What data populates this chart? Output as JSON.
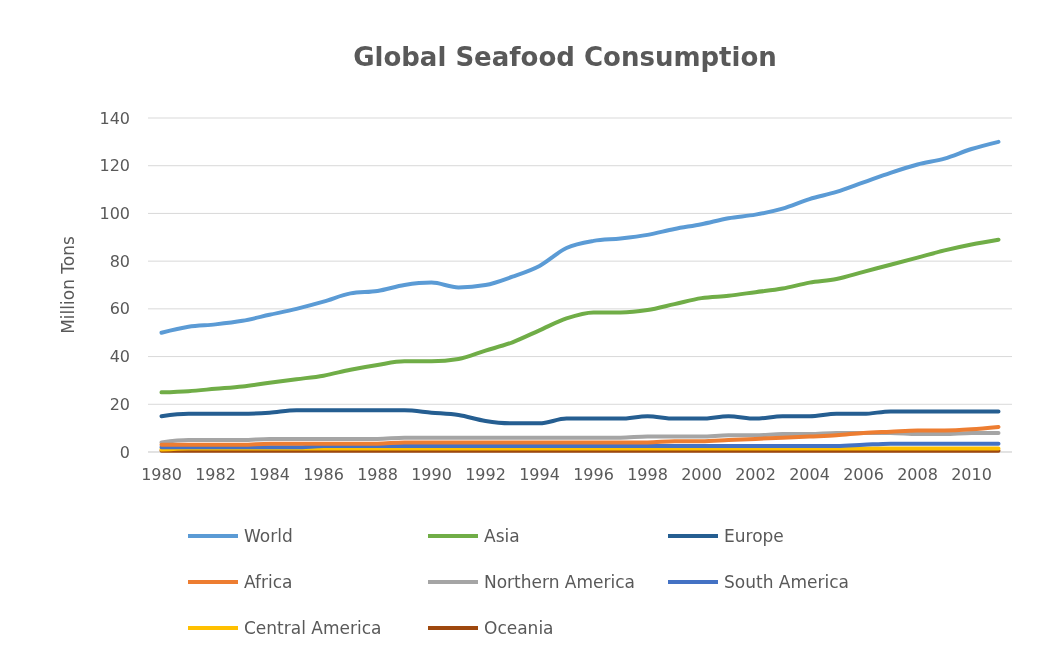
{
  "chart_data": {
    "type": "line",
    "title": "Global Seafood Consumption",
    "ylabel": "Million Tons",
    "x": [
      1980,
      1981,
      1982,
      1983,
      1984,
      1985,
      1986,
      1987,
      1988,
      1989,
      1990,
      1991,
      1992,
      1993,
      1994,
      1995,
      1996,
      1997,
      1998,
      1999,
      2000,
      2001,
      2002,
      2003,
      2004,
      2005,
      2006,
      2007,
      2008,
      2009,
      2010,
      2011
    ],
    "xlim": [
      1979.5,
      2011.5
    ],
    "xticks": [
      1980,
      1982,
      1984,
      1986,
      1988,
      1990,
      1992,
      1994,
      1996,
      1998,
      2000,
      2002,
      2004,
      2006,
      2008,
      2010
    ],
    "ylim": [
      0,
      140
    ],
    "yticks": [
      0,
      20,
      40,
      60,
      80,
      100,
      120,
      140
    ],
    "grid": "y",
    "legend": "bottom",
    "marker": "none",
    "line_style": "solid",
    "series": [
      {
        "name": "World",
        "color": "#5b9bd5",
        "values": [
          50,
          52.5,
          53.5,
          55,
          57.5,
          60,
          63,
          66.5,
          67.5,
          70,
          71,
          69,
          70,
          73.5,
          78,
          85.5,
          88.5,
          89.5,
          91,
          93.5,
          95.5,
          98,
          99.5,
          102,
          106,
          109,
          113,
          117,
          120.5,
          123,
          127,
          130
        ]
      },
      {
        "name": "Asia",
        "color": "#70ad47",
        "values": [
          25,
          25.5,
          26.5,
          27.5,
          29,
          30.5,
          32,
          34.5,
          36.5,
          38,
          38,
          39,
          42.5,
          46,
          51,
          56,
          58.5,
          58.5,
          59.5,
          62,
          64.5,
          65.5,
          67,
          68.5,
          71,
          72.5,
          75.5,
          78.5,
          81.5,
          84.5,
          87,
          89
        ]
      },
      {
        "name": "Europe",
        "color": "#255e91",
        "values": [
          15,
          16,
          16,
          16,
          16.5,
          17.5,
          17.5,
          17.5,
          17.5,
          17.5,
          16.5,
          15.5,
          13,
          12,
          12,
          14,
          14,
          14,
          15,
          14,
          14,
          15,
          14,
          15,
          15,
          16,
          16,
          17,
          17,
          17,
          17,
          17
        ]
      },
      {
        "name": "Africa",
        "color": "#ed7d31",
        "values": [
          3,
          3,
          3,
          3,
          3.5,
          3.5,
          3.5,
          3.5,
          3.5,
          4,
          4,
          4,
          4,
          4,
          4,
          4,
          4,
          4,
          4,
          4.5,
          4.5,
          5,
          5.5,
          6,
          6.5,
          7,
          8,
          8.5,
          9,
          9,
          9.5,
          10.5
        ]
      },
      {
        "name": "Northern America",
        "color": "#a5a5a5",
        "values": [
          4,
          5,
          5,
          5,
          5.5,
          5.5,
          5.5,
          5.5,
          5.5,
          6,
          6,
          6,
          6,
          6,
          6,
          6,
          6,
          6,
          6.5,
          6.5,
          6.5,
          7,
          7,
          7.5,
          7.5,
          8,
          8,
          8,
          7.5,
          7.5,
          8,
          8
        ]
      },
      {
        "name": "South America",
        "color": "#4472c4",
        "values": [
          2,
          2,
          2,
          2,
          2,
          2,
          2.5,
          2.5,
          2.5,
          2.5,
          2.5,
          2.5,
          2.5,
          2.5,
          2.5,
          2.5,
          2.5,
          2.5,
          2.5,
          2.5,
          2.5,
          2.5,
          2.5,
          2.5,
          2.5,
          2.5,
          3,
          3.5,
          3.5,
          3.5,
          3.5,
          3.5
        ]
      },
      {
        "name": "Central America",
        "color": "#ffc000",
        "values": [
          1,
          1.5,
          1.5,
          1.5,
          1.5,
          1.5,
          1.5,
          1.5,
          1.5,
          1.5,
          1.5,
          1.5,
          1.5,
          1.5,
          1.5,
          1.5,
          1.5,
          1.5,
          1.5,
          1.5,
          1.5,
          1.5,
          1.5,
          1.5,
          1.5,
          1.5,
          1.5,
          1.5,
          1.5,
          1.5,
          1.5,
          1.5
        ]
      },
      {
        "name": "Oceania",
        "color": "#9e480e",
        "values": [
          0.5,
          0.5,
          0.5,
          0.5,
          0.5,
          0.5,
          0.5,
          0.5,
          0.5,
          0.5,
          0.5,
          0.5,
          0.5,
          0.5,
          0.5,
          0.5,
          0.5,
          0.5,
          0.5,
          0.5,
          0.5,
          0.5,
          0.5,
          0.5,
          0.5,
          0.5,
          0.5,
          0.5,
          0.5,
          0.5,
          0.5,
          0.5
        ]
      }
    ]
  }
}
